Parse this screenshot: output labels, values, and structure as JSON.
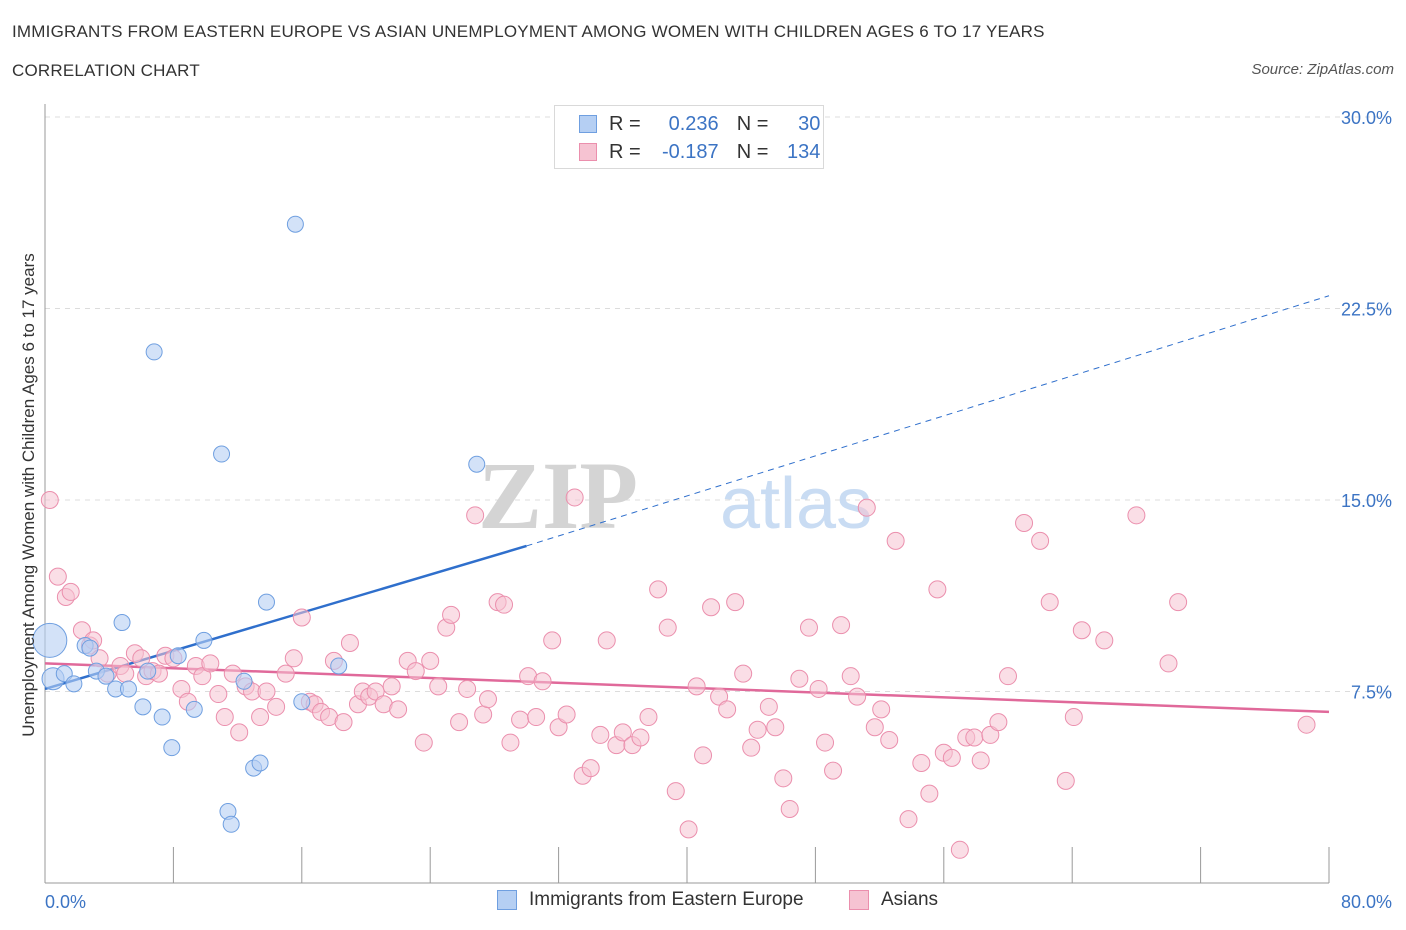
{
  "header": {
    "title": "IMMIGRANTS FROM EASTERN EUROPE VS ASIAN UNEMPLOYMENT AMONG WOMEN WITH CHILDREN AGES 6 TO 17 YEARS",
    "subtitle": "CORRELATION CHART",
    "source": "Source: ZipAtlas.com"
  },
  "legend": {
    "r_label": "R =",
    "n_label": "N =",
    "series": [
      {
        "r": "0.236",
        "n": "30"
      },
      {
        "r": "-0.187",
        "n": "134"
      }
    ]
  },
  "colors": {
    "blue_fill": "#b5cff3",
    "blue_stroke": "#6f9fe0",
    "blue_line": "#2f6fcc",
    "pink_fill": "#f6c3d2",
    "pink_stroke": "#eb8fad",
    "pink_line": "#e0699a",
    "axis_text": "#3c74c4",
    "grid": "#dcdcdc"
  },
  "chart_data": {
    "type": "scatter",
    "title": "IMMIGRANTS FROM EASTERN EUROPE VS ASIAN UNEMPLOYMENT AMONG WOMEN WITH CHILDREN AGES 6 TO 17 YEARS",
    "subtitle": "CORRELATION CHART",
    "xlabel": "",
    "ylabel": "Unemployment Among Women with Children Ages 6 to 17 years",
    "xlim": [
      0,
      80
    ],
    "ylim": [
      0,
      30
    ],
    "x_tick_labels": [
      "0.0%",
      "80.0%"
    ],
    "y_ticks": [
      7.5,
      15,
      22.5,
      30
    ],
    "y_tick_labels": [
      "7.5%",
      "15.0%",
      "22.5%",
      "30.0%"
    ],
    "grid": true,
    "legend_placement": "top-center",
    "watermark": "ZIPatlas",
    "series": [
      {
        "name": "Immigrants from Eastern Europe",
        "color": "#b5cff3",
        "trend": {
          "x": [
            0,
            30
          ],
          "y": [
            7.6,
            13.2
          ],
          "extended_to": [
            80,
            23.0
          ]
        },
        "points": [
          [
            0.3,
            9.5,
            16
          ],
          [
            0.5,
            8.0,
            10
          ],
          [
            1.2,
            8.2,
            7
          ],
          [
            1.8,
            7.8,
            7
          ],
          [
            2.5,
            9.3,
            7
          ],
          [
            2.8,
            9.2,
            7
          ],
          [
            3.2,
            8.3,
            7
          ],
          [
            3.8,
            8.1,
            7
          ],
          [
            4.4,
            7.6,
            7
          ],
          [
            4.8,
            10.2,
            7
          ],
          [
            5.2,
            7.6,
            7
          ],
          [
            6.1,
            6.9,
            7
          ],
          [
            6.4,
            8.3,
            7
          ],
          [
            6.8,
            20.8,
            7
          ],
          [
            7.3,
            6.5,
            7
          ],
          [
            7.9,
            5.3,
            7
          ],
          [
            8.3,
            8.9,
            7
          ],
          [
            9.3,
            6.8,
            7
          ],
          [
            9.9,
            9.5,
            7
          ],
          [
            11.0,
            16.8,
            7
          ],
          [
            11.4,
            2.8,
            7
          ],
          [
            11.6,
            2.3,
            7
          ],
          [
            12.4,
            7.9,
            7
          ],
          [
            13.0,
            4.5,
            7
          ],
          [
            13.4,
            4.7,
            7
          ],
          [
            13.8,
            11.0,
            7
          ],
          [
            15.6,
            25.8,
            7
          ],
          [
            16.0,
            7.1,
            7
          ],
          [
            18.3,
            8.5,
            7
          ],
          [
            26.9,
            16.4,
            7
          ]
        ]
      },
      {
        "name": "Asians",
        "color": "#f6c3d2",
        "trend": {
          "x": [
            0,
            80
          ],
          "y": [
            8.6,
            6.7
          ]
        },
        "points": [
          [
            0.3,
            15.0
          ],
          [
            0.8,
            12.0
          ],
          [
            1.3,
            11.2
          ],
          [
            1.6,
            11.4
          ],
          [
            2.3,
            9.9
          ],
          [
            2.8,
            9.3
          ],
          [
            3.0,
            9.5
          ],
          [
            3.4,
            8.8
          ],
          [
            3.9,
            8.2
          ],
          [
            4.7,
            8.5
          ],
          [
            5.0,
            8.2
          ],
          [
            5.6,
            9.0
          ],
          [
            6.0,
            8.8
          ],
          [
            6.3,
            8.1
          ],
          [
            6.7,
            8.3
          ],
          [
            7.1,
            8.2
          ],
          [
            7.5,
            8.9
          ],
          [
            8.0,
            8.8
          ],
          [
            8.5,
            7.6
          ],
          [
            8.9,
            7.1
          ],
          [
            9.4,
            8.5
          ],
          [
            9.8,
            8.1
          ],
          [
            10.3,
            8.6
          ],
          [
            10.8,
            7.4
          ],
          [
            11.2,
            6.5
          ],
          [
            11.7,
            8.2
          ],
          [
            12.1,
            5.9
          ],
          [
            12.5,
            7.7
          ],
          [
            12.9,
            7.5
          ],
          [
            13.4,
            6.5
          ],
          [
            13.8,
            7.5
          ],
          [
            14.4,
            6.9
          ],
          [
            15.0,
            8.2
          ],
          [
            15.5,
            8.8
          ],
          [
            16.0,
            10.4
          ],
          [
            16.5,
            7.1
          ],
          [
            16.8,
            7.0
          ],
          [
            17.2,
            6.7
          ],
          [
            17.7,
            6.5
          ],
          [
            18.0,
            8.7
          ],
          [
            18.6,
            6.3
          ],
          [
            19.0,
            9.4
          ],
          [
            19.5,
            7.0
          ],
          [
            19.8,
            7.5
          ],
          [
            20.2,
            7.3
          ],
          [
            20.6,
            7.5
          ],
          [
            21.1,
            7.0
          ],
          [
            21.6,
            7.7
          ],
          [
            22.0,
            6.8
          ],
          [
            22.6,
            8.7
          ],
          [
            23.1,
            8.3
          ],
          [
            23.6,
            5.5
          ],
          [
            24.0,
            8.7
          ],
          [
            24.5,
            7.7
          ],
          [
            25.0,
            10.0
          ],
          [
            25.3,
            10.5
          ],
          [
            25.8,
            6.3
          ],
          [
            26.3,
            7.6
          ],
          [
            26.8,
            14.4
          ],
          [
            27.3,
            6.6
          ],
          [
            27.6,
            7.2
          ],
          [
            28.2,
            11.0
          ],
          [
            28.6,
            10.9
          ],
          [
            29.0,
            5.5
          ],
          [
            29.6,
            6.4
          ],
          [
            30.1,
            8.1
          ],
          [
            30.6,
            6.5
          ],
          [
            31.0,
            7.9
          ],
          [
            31.6,
            9.5
          ],
          [
            32.0,
            6.1
          ],
          [
            32.5,
            6.6
          ],
          [
            33.0,
            15.1
          ],
          [
            33.5,
            4.2
          ],
          [
            34.0,
            4.5
          ],
          [
            34.6,
            5.8
          ],
          [
            35.0,
            9.5
          ],
          [
            35.6,
            5.4
          ],
          [
            36.0,
            5.9
          ],
          [
            36.6,
            5.4
          ],
          [
            37.1,
            5.7
          ],
          [
            37.6,
            6.5
          ],
          [
            38.2,
            11.5
          ],
          [
            38.8,
            10.0
          ],
          [
            39.3,
            3.6
          ],
          [
            40.1,
            2.1
          ],
          [
            40.6,
            7.7
          ],
          [
            41.0,
            5.0
          ],
          [
            41.5,
            10.8
          ],
          [
            42.0,
            7.3
          ],
          [
            42.5,
            6.8
          ],
          [
            43.0,
            11.0
          ],
          [
            43.5,
            8.2
          ],
          [
            44.0,
            5.3
          ],
          [
            44.4,
            6.0
          ],
          [
            45.1,
            6.9
          ],
          [
            45.5,
            6.1
          ],
          [
            46.0,
            4.1
          ],
          [
            46.4,
            2.9
          ],
          [
            47.0,
            8.0
          ],
          [
            47.6,
            10.0
          ],
          [
            48.2,
            7.6
          ],
          [
            48.6,
            5.5
          ],
          [
            49.1,
            4.4
          ],
          [
            49.6,
            10.1
          ],
          [
            50.2,
            8.1
          ],
          [
            50.6,
            7.3
          ],
          [
            51.2,
            14.7
          ],
          [
            51.7,
            6.1
          ],
          [
            52.1,
            6.8
          ],
          [
            52.6,
            5.6
          ],
          [
            53.0,
            13.4
          ],
          [
            53.8,
            2.5
          ],
          [
            54.6,
            4.7
          ],
          [
            55.1,
            3.5
          ],
          [
            55.6,
            11.5
          ],
          [
            56.0,
            5.1
          ],
          [
            56.5,
            4.9
          ],
          [
            57.0,
            1.3
          ],
          [
            57.4,
            5.7
          ],
          [
            57.9,
            5.7
          ],
          [
            58.3,
            4.8
          ],
          [
            58.9,
            5.8
          ],
          [
            59.4,
            6.3
          ],
          [
            60.0,
            8.1
          ],
          [
            61.0,
            14.1
          ],
          [
            62.0,
            13.4
          ],
          [
            62.6,
            11.0
          ],
          [
            63.6,
            4.0
          ],
          [
            64.1,
            6.5
          ],
          [
            64.6,
            9.9
          ],
          [
            66.0,
            9.5
          ],
          [
            68.0,
            14.4
          ],
          [
            70.0,
            8.6
          ],
          [
            70.6,
            11.0
          ],
          [
            78.6,
            6.2
          ]
        ]
      }
    ]
  },
  "bottom_legend": [
    "Immigrants from Eastern Europe",
    "Asians"
  ]
}
